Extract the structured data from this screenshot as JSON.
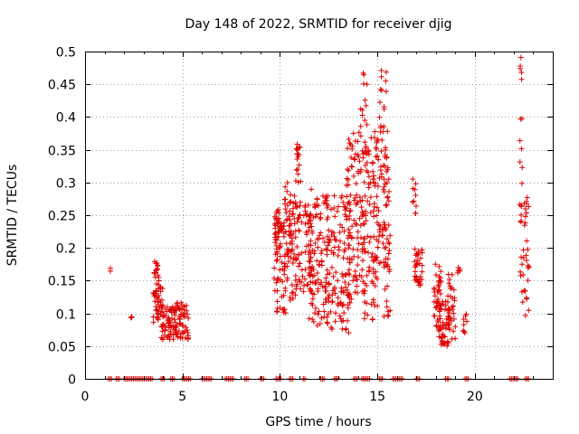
{
  "chart_data": {
    "type": "scatter",
    "title": "Day 148 of 2022, SRMTID for receiver djig",
    "xlabel": "GPS time / hours",
    "ylabel": "SRMTID / TECUs",
    "xlim": [
      0,
      24
    ],
    "ylim": [
      0,
      0.5
    ],
    "x_ticks": [
      "0",
      "5",
      "10",
      "15",
      "20"
    ],
    "y_ticks": [
      "0",
      "0.05",
      "0.1",
      "0.15",
      "0.2",
      "0.25",
      "0.3",
      "0.35",
      "0.4",
      "0.45",
      "0.5"
    ],
    "grid": true,
    "legend": "none",
    "marker": "plus",
    "color": "#e00000",
    "series": [
      {
        "clusters": [
          {
            "x": [
              1.3,
              1.3
            ],
            "y": [
              0.16,
              0.17
            ],
            "n": 2
          },
          {
            "x": [
              2.3,
              2.4
            ],
            "y": [
              0.09,
              0.1
            ],
            "n": 3
          },
          {
            "x": [
              3.5,
              3.8
            ],
            "y": [
              0.12,
              0.18
            ],
            "n": 22
          },
          {
            "x": [
              3.5,
              4.0
            ],
            "y": [
              0.08,
              0.14
            ],
            "n": 40
          },
          {
            "x": [
              3.9,
              4.6
            ],
            "y": [
              0.06,
              0.11
            ],
            "n": 55
          },
          {
            "x": [
              4.6,
              5.3
            ],
            "y": [
              0.06,
              0.12
            ],
            "n": 60
          },
          {
            "x": [
              9.7,
              10.0
            ],
            "y": [
              0.22,
              0.26
            ],
            "n": 14
          },
          {
            "x": [
              9.7,
              10.3
            ],
            "y": [
              0.1,
              0.24
            ],
            "n": 70
          },
          {
            "x": [
              10.2,
              10.8
            ],
            "y": [
              0.12,
              0.3
            ],
            "n": 70
          },
          {
            "x": [
              10.8,
              11.1
            ],
            "y": [
              0.3,
              0.36
            ],
            "n": 18
          },
          {
            "x": [
              10.8,
              11.6
            ],
            "y": [
              0.13,
              0.27
            ],
            "n": 70
          },
          {
            "x": [
              11.5,
              12.5
            ],
            "y": [
              0.08,
              0.29
            ],
            "n": 110
          },
          {
            "x": [
              12.4,
              13.6
            ],
            "y": [
              0.07,
              0.28
            ],
            "n": 120
          },
          {
            "x": [
              13.4,
              14.4
            ],
            "y": [
              0.12,
              0.38
            ],
            "n": 120
          },
          {
            "x": [
              14.1,
              14.5
            ],
            "y": [
              0.38,
              0.47
            ],
            "n": 12
          },
          {
            "x": [
              14.3,
              15.0
            ],
            "y": [
              0.09,
              0.37
            ],
            "n": 80
          },
          {
            "x": [
              14.8,
              15.6
            ],
            "y": [
              0.17,
              0.39
            ],
            "n": 80
          },
          {
            "x": [
              15.1,
              15.5
            ],
            "y": [
              0.38,
              0.48
            ],
            "n": 14
          },
          {
            "x": [
              15.3,
              15.7
            ],
            "y": [
              0.08,
              0.25
            ],
            "n": 20
          },
          {
            "x": [
              16.8,
              17.0
            ],
            "y": [
              0.24,
              0.31
            ],
            "n": 10
          },
          {
            "x": [
              16.9,
              17.3
            ],
            "y": [
              0.14,
              0.2
            ],
            "n": 35
          },
          {
            "x": [
              17.9,
              18.3
            ],
            "y": [
              0.08,
              0.18
            ],
            "n": 40
          },
          {
            "x": [
              18.1,
              18.7
            ],
            "y": [
              0.05,
              0.12
            ],
            "n": 55
          },
          {
            "x": [
              18.6,
              19.0
            ],
            "y": [
              0.06,
              0.16
            ],
            "n": 30
          },
          {
            "x": [
              19.1,
              19.3
            ],
            "y": [
              0.16,
              0.17
            ],
            "n": 6
          },
          {
            "x": [
              19.4,
              19.6
            ],
            "y": [
              0.06,
              0.1
            ],
            "n": 8
          },
          {
            "x": [
              22.3,
              22.4
            ],
            "y": [
              0.44,
              0.5
            ],
            "n": 5
          },
          {
            "x": [
              22.3,
              22.5
            ],
            "y": [
              0.32,
              0.4
            ],
            "n": 6
          },
          {
            "x": [
              22.3,
              22.8
            ],
            "y": [
              0.09,
              0.3
            ],
            "n": 40
          }
        ],
        "zero_ranges": [
          [
            1.2,
            1.4
          ],
          [
            1.6,
            1.8
          ],
          [
            2.0,
            3.5
          ],
          [
            3.9,
            4.1
          ],
          [
            4.4,
            4.6
          ],
          [
            5.0,
            5.4
          ],
          [
            6.0,
            6.5
          ],
          [
            7.2,
            7.6
          ],
          [
            8.2,
            8.4
          ],
          [
            9.0,
            9.2
          ],
          [
            9.8,
            10.1
          ],
          [
            10.5,
            10.7
          ],
          [
            11.2,
            11.3
          ],
          [
            12.1,
            12.3
          ],
          [
            12.8,
            13.0
          ],
          [
            13.8,
            14.0
          ],
          [
            14.2,
            14.6
          ],
          [
            15.1,
            15.3
          ],
          [
            15.8,
            16.3
          ],
          [
            17.0,
            17.2
          ],
          [
            18.5,
            18.7
          ],
          [
            19.5,
            19.7
          ],
          [
            21.8,
            22.2
          ],
          [
            22.6,
            22.8
          ]
        ]
      }
    ]
  }
}
